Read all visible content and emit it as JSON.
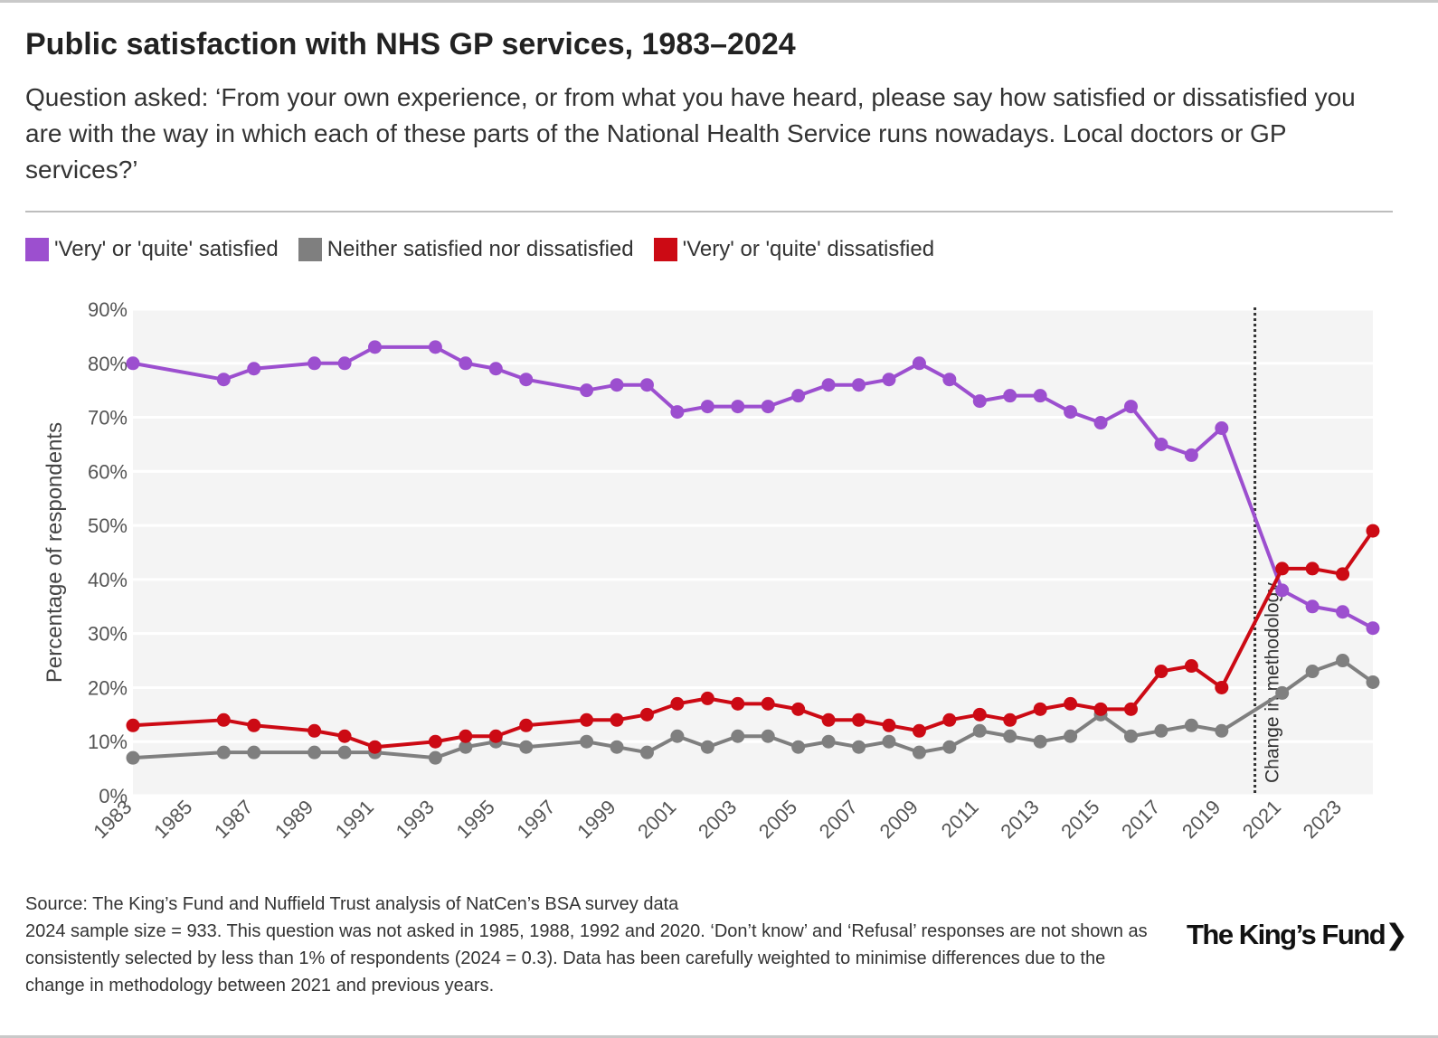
{
  "title": "Public satisfaction with NHS GP services, 1983–2024",
  "subtitle": "Question asked: ‘From your own experience, or from what you have heard, please say how satisfied or dissatisfied you are with the way in which each of these parts of the National Health Service runs nowadays. Local doctors or GP services?’",
  "legend": [
    {
      "label": "'Very' or 'quite' satisfied",
      "color": "#9c4fcf"
    },
    {
      "label": "Neither satisfied nor dissatisfied",
      "color": "#7f7f7f"
    },
    {
      "label": "'Very' or 'quite' dissatisfied",
      "color": "#cc0a14"
    }
  ],
  "footer": {
    "source": "Source: The King’s Fund and Nuffield Trust analysis of NatCen’s BSA survey data",
    "note": "2024 sample size = 933. This question was not asked in 1985, 1988, 1992 and 2020. ‘Don’t know’ and ‘Refusal’ responses are not shown as consistently selected by less than 1% of respondents (2024 = 0.3). Data has been carefully weighted to minimise differences due to the change in methodology between 2021 and previous years."
  },
  "logo": "The King’s Fund❯",
  "chart_data": {
    "type": "line",
    "ylabel": "Percentage of respondents",
    "xlabel": "",
    "xlim": [
      1983,
      2024
    ],
    "ylim": [
      0,
      90
    ],
    "yticks": [
      0,
      10,
      20,
      30,
      40,
      50,
      60,
      70,
      80,
      90
    ],
    "ytick_labels": [
      "0%",
      "10%",
      "20%",
      "30%",
      "40%",
      "50%",
      "60%",
      "70%",
      "80%",
      "90%"
    ],
    "xticks": [
      "1983",
      "1985",
      "1987",
      "1989",
      "1991",
      "1993",
      "1995",
      "1997",
      "1999",
      "2001",
      "2003",
      "2005",
      "2007",
      "2009",
      "2011",
      "2013",
      "2015",
      "2017",
      "2019",
      "2021",
      "2023"
    ],
    "annotation": {
      "label": "Change in methodology",
      "x": 2020.1
    },
    "x": [
      1983,
      1986,
      1987,
      1989,
      1990,
      1991,
      1993,
      1994,
      1995,
      1996,
      1998,
      1999,
      2000,
      2001,
      2002,
      2003,
      2004,
      2005,
      2006,
      2007,
      2008,
      2009,
      2010,
      2011,
      2012,
      2013,
      2014,
      2015,
      2016,
      2017,
      2018,
      2019,
      2021,
      2022,
      2023,
      2024
    ],
    "series": [
      {
        "name": "'Very' or 'quite' satisfied",
        "color": "#9c4fcf",
        "values": [
          80,
          77,
          79,
          80,
          80,
          83,
          83,
          80,
          79,
          77,
          75,
          76,
          76,
          71,
          72,
          72,
          72,
          74,
          76,
          76,
          77,
          80,
          77,
          73,
          74,
          74,
          71,
          69,
          72,
          65,
          63,
          68,
          38,
          35,
          34,
          31
        ]
      },
      {
        "name": "Neither satisfied nor dissatisfied",
        "color": "#7f7f7f",
        "values": [
          7,
          8,
          8,
          8,
          8,
          8,
          7,
          9,
          10,
          9,
          10,
          9,
          8,
          11,
          9,
          11,
          11,
          9,
          10,
          9,
          10,
          8,
          9,
          12,
          11,
          10,
          11,
          15,
          11,
          12,
          13,
          12,
          19,
          23,
          25,
          21
        ]
      },
      {
        "name": "'Very' or 'quite' dissatisfied",
        "color": "#cc0a14",
        "values": [
          13,
          14,
          13,
          12,
          11,
          9,
          10,
          11,
          11,
          13,
          14,
          14,
          15,
          17,
          18,
          17,
          17,
          16,
          14,
          14,
          13,
          12,
          14,
          15,
          14,
          16,
          17,
          16,
          16,
          23,
          24,
          20,
          42,
          42,
          41,
          49
        ]
      }
    ]
  }
}
